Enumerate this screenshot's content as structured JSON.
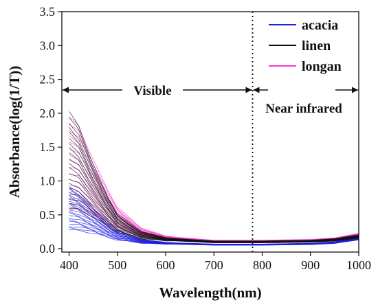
{
  "chart_data": {
    "type": "line",
    "title": "",
    "xlabel": "Wavelength(nm)",
    "ylabel": "Absorbance(log(1/T))",
    "xlim": [
      385,
      1000
    ],
    "ylim": [
      -0.05,
      3.5
    ],
    "xticks": [
      "400",
      "500",
      "600",
      "700",
      "800",
      "900",
      "1000"
    ],
    "yticks": [
      "0.0",
      "0.5",
      "1.0",
      "1.5",
      "2.0",
      "2.5",
      "3.0",
      "3.5"
    ],
    "grid": false,
    "legend_position": "top-right",
    "divider_x": 780,
    "annotations": {
      "visible": "Visible",
      "nir": "Near infrared"
    },
    "series": [
      {
        "name": "acacia",
        "color": "#1f1fe0",
        "description_range": "multiple spectra; ~0.2-1.0 at 400 nm, decaying to ~0.05-0.1 by 600 nm, rising slightly to ~0.1-0.2 at 1000 nm",
        "x": [
          400,
          420,
          450,
          480,
          500,
          550,
          600,
          700,
          800,
          900,
          950,
          1000
        ],
        "values": [
          0.6,
          0.55,
          0.42,
          0.28,
          0.2,
          0.11,
          0.08,
          0.06,
          0.06,
          0.07,
          0.09,
          0.15
        ]
      },
      {
        "name": "linen",
        "color": "#111111",
        "x": [
          400,
          420,
          450,
          480,
          500,
          550,
          600,
          700,
          800,
          900,
          950,
          1000
        ],
        "values": [
          1.3,
          1.2,
          0.85,
          0.55,
          0.38,
          0.2,
          0.14,
          0.1,
          0.1,
          0.11,
          0.13,
          0.18
        ]
      },
      {
        "name": "longan",
        "color": "#ff33cc",
        "x": [
          400,
          420,
          450,
          480,
          500,
          550,
          600,
          700,
          800,
          900,
          950,
          1000
        ],
        "values": [
          1.25,
          1.2,
          0.9,
          0.62,
          0.45,
          0.24,
          0.16,
          0.11,
          0.11,
          0.12,
          0.14,
          0.2
        ]
      }
    ]
  }
}
